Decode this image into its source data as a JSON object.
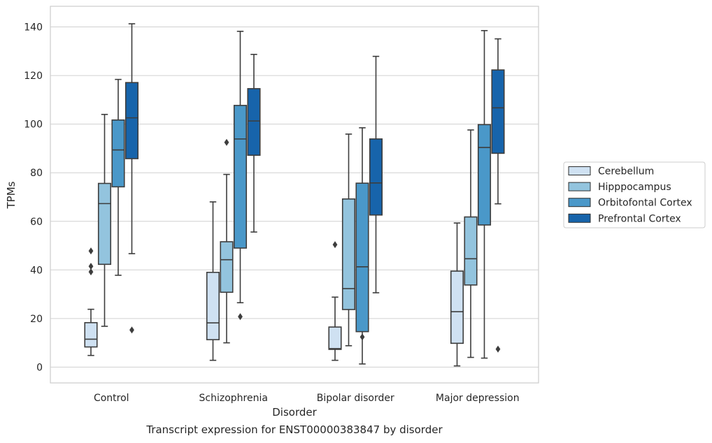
{
  "caption": "Transcript expression for ENST00000383847 by disorder",
  "chart_data": {
    "type": "boxplot",
    "title": "",
    "xlabel": "Disorder",
    "ylabel": "TPMs",
    "ylim": [
      -6.5,
      148.5
    ],
    "yticks": [
      0,
      20,
      40,
      60,
      80,
      100,
      120,
      140
    ],
    "grid": true,
    "legend": "right",
    "categories": [
      "Control",
      "Schizophrenia",
      "Bipolar disorder",
      "Major depression"
    ],
    "series": [
      {
        "name": "Cerebellum",
        "color": "#cfe1f2",
        "boxes": [
          {
            "whisker_low": 4.8,
            "q1": 8.3,
            "median": 11.5,
            "q3": 18.3,
            "whisker_high": 23.8,
            "outliers": [
              39.2,
              41.5,
              47.8
            ]
          },
          {
            "whisker_low": 2.8,
            "q1": 11.3,
            "median": 18.2,
            "q3": 39.0,
            "whisker_high": 68.0,
            "outliers": []
          },
          {
            "whisker_low": 2.8,
            "q1": 7.3,
            "median": 7.6,
            "q3": 16.5,
            "whisker_high": 28.8,
            "outliers": [
              50.4
            ]
          },
          {
            "whisker_low": 0.5,
            "q1": 9.8,
            "median": 22.8,
            "q3": 39.5,
            "whisker_high": 59.3,
            "outliers": []
          }
        ]
      },
      {
        "name": "Hipppocampus",
        "color": "#93c4de",
        "boxes": [
          {
            "whisker_low": 16.8,
            "q1": 42.3,
            "median": 67.3,
            "q3": 75.6,
            "whisker_high": 104.0,
            "outliers": []
          },
          {
            "whisker_low": 10.0,
            "q1": 30.8,
            "median": 44.2,
            "q3": 51.6,
            "whisker_high": 79.3,
            "outliers": [
              92.5
            ]
          },
          {
            "whisker_low": 8.8,
            "q1": 23.7,
            "median": 32.3,
            "q3": 69.2,
            "whisker_high": 95.9,
            "outliers": []
          },
          {
            "whisker_low": 4.0,
            "q1": 33.8,
            "median": 44.6,
            "q3": 61.8,
            "whisker_high": 97.6,
            "outliers": []
          }
        ]
      },
      {
        "name": "Orbitofontal Cortex",
        "color": "#4a98c9",
        "boxes": [
          {
            "whisker_low": 37.8,
            "q1": 74.2,
            "median": 89.4,
            "q3": 101.7,
            "whisker_high": 118.4,
            "outliers": []
          },
          {
            "whisker_low": 26.5,
            "q1": 49.0,
            "median": 93.9,
            "q3": 107.7,
            "whisker_high": 138.2,
            "outliers": [
              20.8
            ]
          },
          {
            "whisker_low": 1.3,
            "q1": 14.6,
            "median": 41.3,
            "q3": 75.7,
            "whisker_high": 98.5,
            "outliers": [
              12.4
            ]
          },
          {
            "whisker_low": 3.7,
            "q1": 58.5,
            "median": 90.4,
            "q3": 99.8,
            "whisker_high": 138.5,
            "outliers": []
          }
        ]
      },
      {
        "name": "Prefrontal Cortex",
        "color": "#1764ab",
        "boxes": [
          {
            "whisker_low": 46.7,
            "q1": 85.8,
            "median": 102.6,
            "q3": 117.1,
            "whisker_high": 141.3,
            "outliers": [
              15.3
            ]
          },
          {
            "whisker_low": 55.6,
            "q1": 87.2,
            "median": 101.3,
            "q3": 114.6,
            "whisker_high": 128.7,
            "outliers": []
          },
          {
            "whisker_low": 30.6,
            "q1": 62.6,
            "median": 75.8,
            "q3": 93.9,
            "whisker_high": 127.9,
            "outliers": []
          },
          {
            "whisker_low": 67.2,
            "q1": 88.0,
            "median": 106.7,
            "q3": 122.3,
            "whisker_high": 135.1,
            "outliers": [
              7.4
            ]
          }
        ]
      }
    ]
  }
}
